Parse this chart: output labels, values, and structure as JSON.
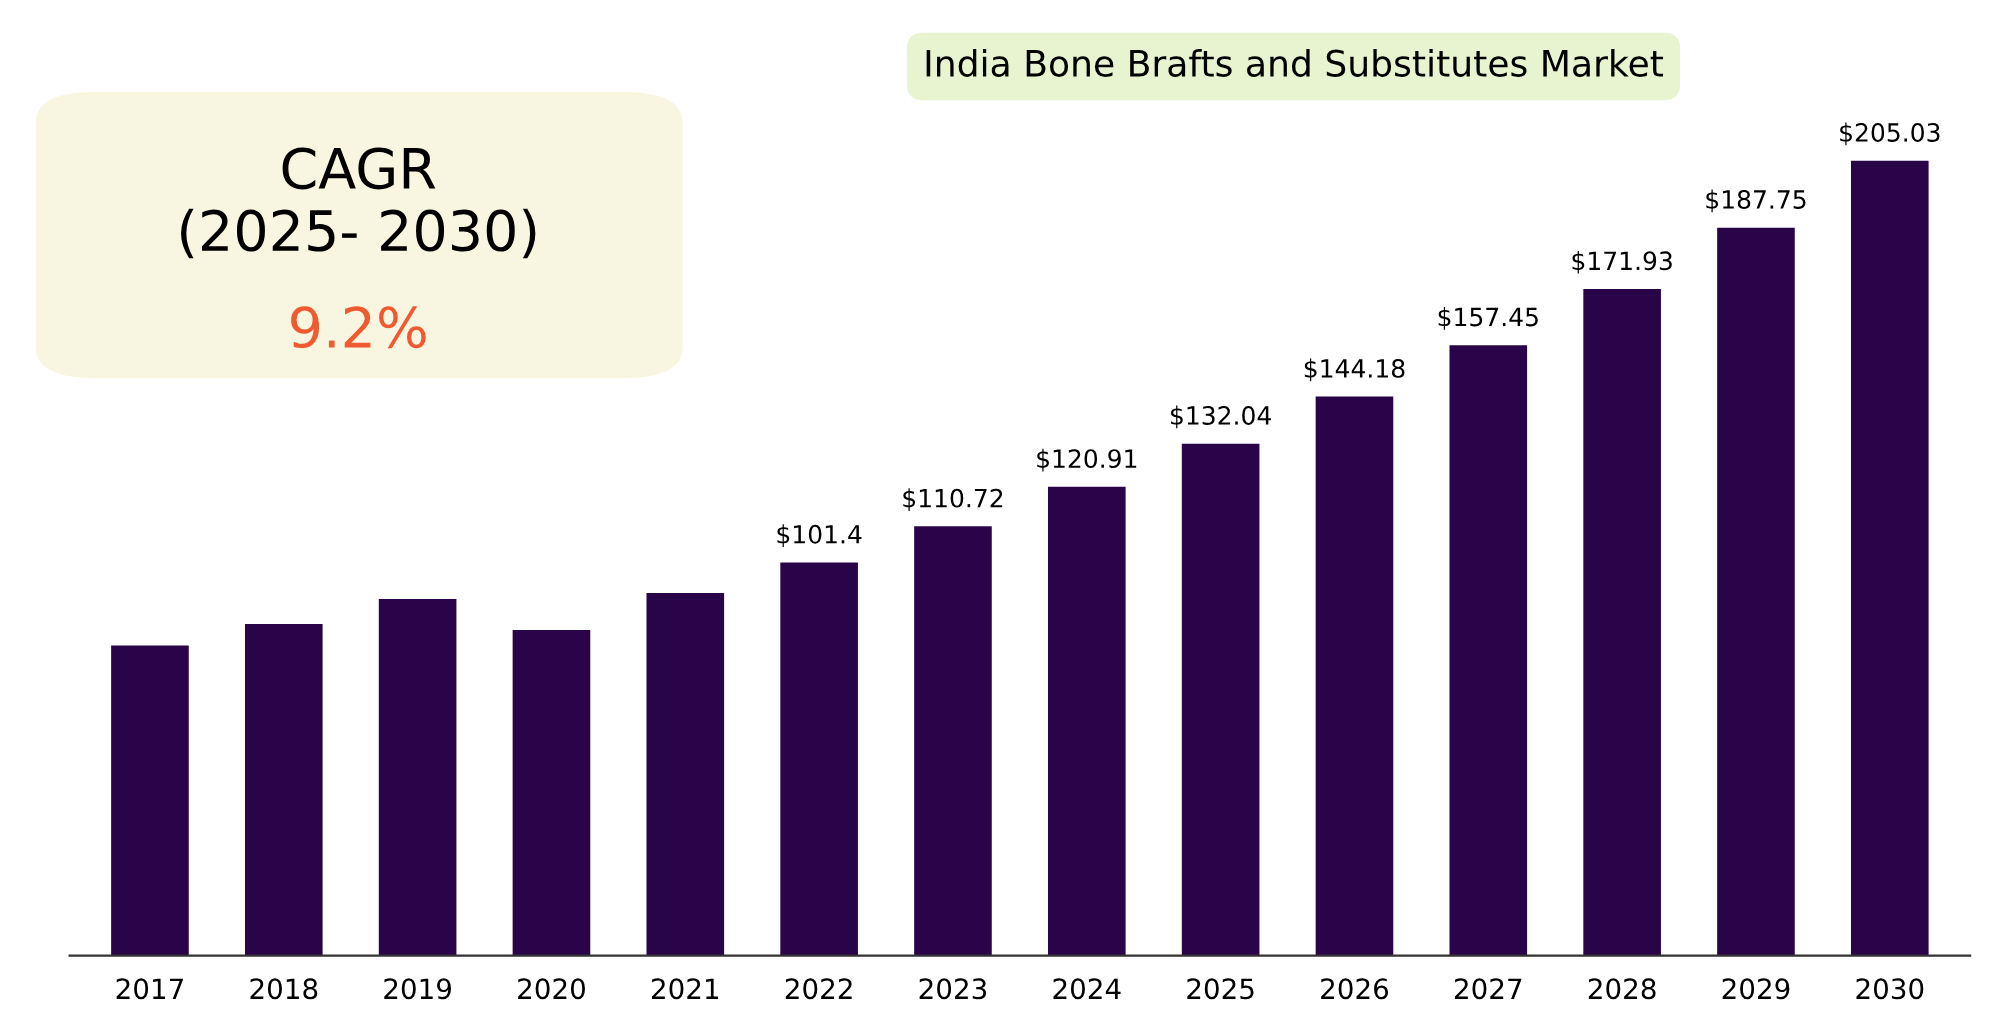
{
  "chart_data": {
    "type": "bar",
    "title": "India Bone Brafts and Substitutes Market",
    "categories": [
      "2017",
      "2018",
      "2019",
      "2020",
      "2021",
      "2022",
      "2023",
      "2024",
      "2025",
      "2026",
      "2027",
      "2028",
      "2029",
      "2030"
    ],
    "values": [
      80,
      85.5,
      92,
      84,
      93.5,
      101.4,
      110.72,
      120.91,
      132.04,
      144.18,
      157.45,
      171.93,
      187.75,
      205.03
    ],
    "value_labels": [
      null,
      null,
      null,
      null,
      null,
      "$101.4",
      "$110.72",
      "$120.91",
      "$132.04",
      "$144.18",
      "$157.45",
      "$171.93",
      "$187.75",
      "$205.03"
    ],
    "color": "#2a0449",
    "tick_labels": "x",
    "annotations": [
      "CAGR\n(2025- 2030)",
      "9.2%"
    ]
  }
}
